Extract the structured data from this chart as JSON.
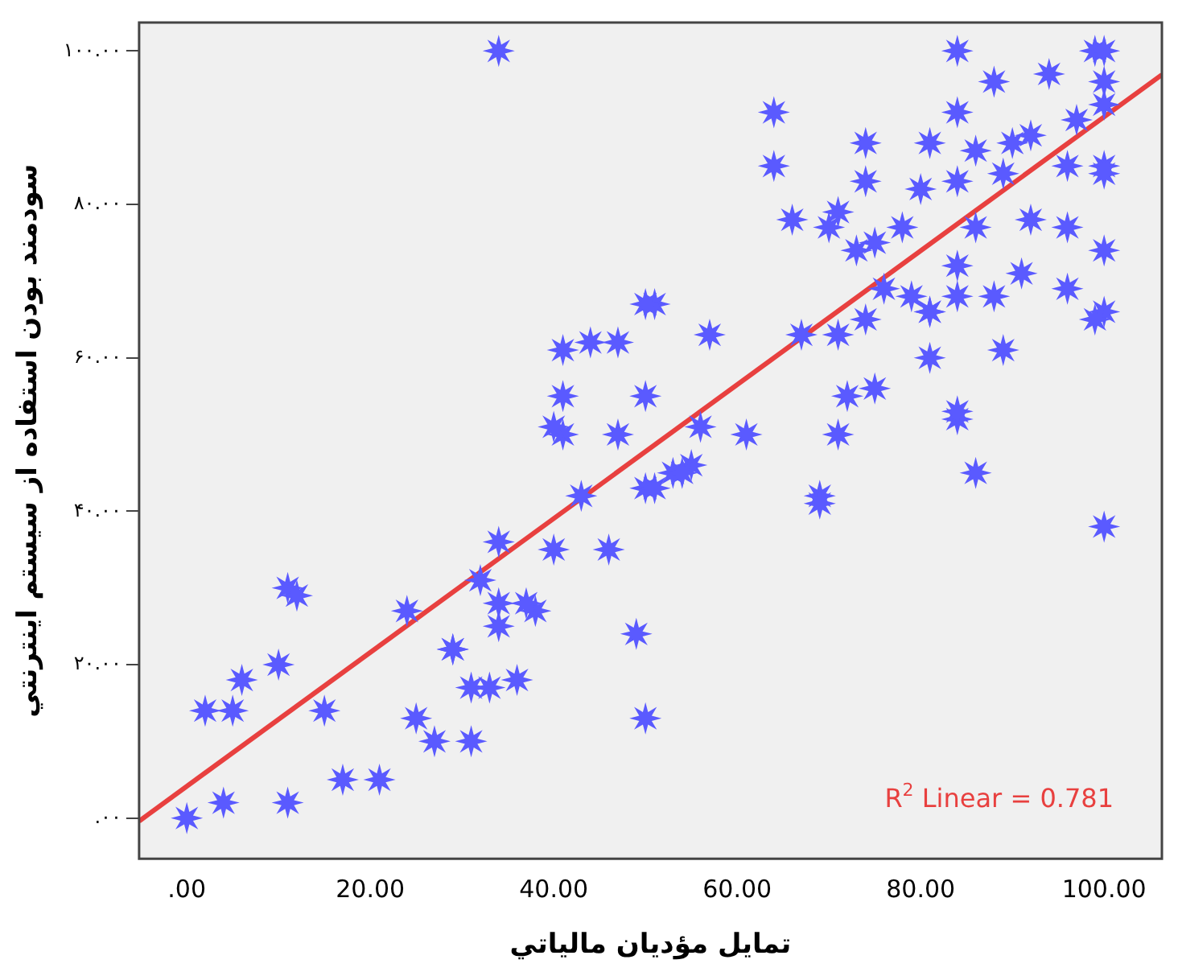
{
  "chart_data": {
    "type": "scatter",
    "xlabel": "تمايل مؤديان مالياتي",
    "ylabel": "سودمند بودن استفاده از سيستم اينترنتي",
    "xlim": [
      -5.2,
      106.3
    ],
    "ylim": [
      -5.3,
      103.7
    ],
    "xticks": [
      {
        "value": 0,
        "label": ".00"
      },
      {
        "value": 20,
        "label": "20.00"
      },
      {
        "value": 40,
        "label": "40.00"
      },
      {
        "value": 60,
        "label": "60.00"
      },
      {
        "value": 80,
        "label": "80.00"
      },
      {
        "value": 100,
        "label": "100.00"
      }
    ],
    "yticks": [
      {
        "value": 0,
        "label": ".۰۰"
      },
      {
        "value": 20,
        "label": "۲۰.۰۰"
      },
      {
        "value": 40,
        "label": "۴۰.۰۰"
      },
      {
        "value": 60,
        "label": "۶۰.۰۰"
      },
      {
        "value": 80,
        "label": "۸۰.۰۰"
      },
      {
        "value": 100,
        "label": "۱۰۰.۰۰"
      }
    ],
    "series": [
      {
        "type": "scatter",
        "color": "#5a5aff",
        "marker": "star",
        "x": [
          0,
          4,
          11,
          17,
          21,
          2,
          5,
          6,
          10,
          11,
          12,
          15,
          24,
          25,
          27,
          31,
          29,
          31,
          33,
          36,
          32,
          34,
          34,
          34,
          38,
          37,
          40,
          46,
          43,
          41,
          47,
          49,
          50,
          50,
          29,
          61,
          71,
          69,
          69,
          86,
          84,
          100,
          51,
          53,
          55,
          34,
          64,
          64,
          66,
          84,
          74,
          51,
          57,
          67,
          71,
          74,
          75,
          80,
          84,
          88,
          84,
          94,
          99,
          100,
          100,
          100,
          100,
          92,
          89,
          86,
          84,
          84,
          88,
          91,
          96,
          100,
          100,
          99,
          89,
          81,
          79,
          74,
          81,
          84,
          71,
          76,
          96,
          92,
          96,
          97,
          90,
          86,
          70,
          73,
          78,
          81,
          100,
          41,
          44,
          47,
          50,
          41,
          50,
          40,
          56,
          54,
          75,
          72,
          81
        ],
        "values": [
          0,
          2,
          2,
          5,
          5,
          14,
          14,
          18,
          20,
          30,
          29,
          14,
          27,
          13,
          10,
          10,
          22,
          17,
          17,
          18,
          31,
          36,
          28,
          25,
          27,
          28,
          35,
          35,
          42,
          50,
          50,
          24,
          13,
          43,
          22,
          50,
          50,
          42,
          41,
          45,
          52,
          38,
          43,
          45,
          46,
          100,
          92,
          85,
          78,
          100,
          88,
          67,
          63,
          63,
          79,
          83,
          75,
          82,
          83,
          96,
          92,
          97,
          100,
          100,
          93,
          85,
          84,
          89,
          84,
          77,
          72,
          68,
          68,
          71,
          69,
          74,
          66,
          65,
          61,
          66,
          68,
          65,
          60,
          53,
          63,
          69,
          77,
          78,
          85,
          91,
          88,
          87,
          77,
          74,
          77,
          88,
          96,
          61,
          62,
          62,
          67,
          55,
          55,
          51,
          51,
          45,
          56,
          55,
          66
        ]
      },
      {
        "type": "line",
        "color": "#e8403f",
        "x": [
          -5.2,
          106.3
        ],
        "values": [
          -0.4,
          96.9
        ],
        "marker": "none"
      }
    ],
    "annotations": [
      "R$^{2}$ Linear = 0.781"
    ]
  }
}
